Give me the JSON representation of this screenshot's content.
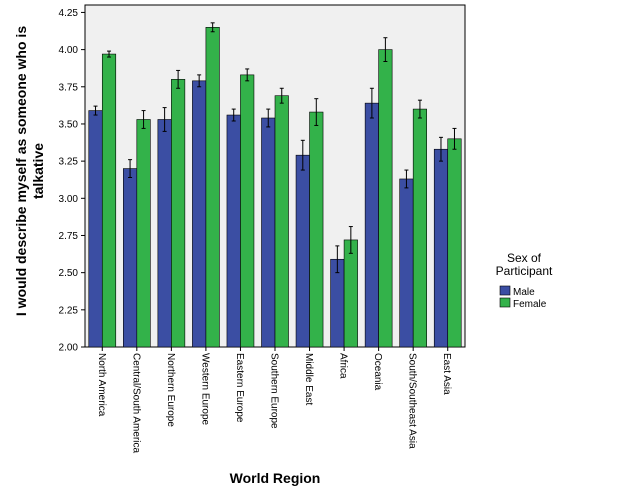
{
  "chart_data": {
    "type": "bar",
    "title": "",
    "xlabel": "World Region",
    "ylabel_lines": [
      "I would describe myself as someone who is",
      "talkative"
    ],
    "ylim": [
      2.0,
      4.3
    ],
    "yticks": [
      "2.00",
      "2.25",
      "2.50",
      "2.75",
      "3.00",
      "3.25",
      "3.50",
      "3.75",
      "4.00",
      "4.25"
    ],
    "categories": [
      "North America",
      "Central/South America",
      "Northern Europe",
      "Western Europe",
      "Eastern Europe",
      "Southern Europe",
      "Middle East",
      "Africa",
      "Oceania",
      "South/Southeast Asia",
      "East Asia"
    ],
    "legend": {
      "title_lines": [
        "Sex of",
        "Participant"
      ],
      "placement": "right"
    },
    "grid": false,
    "error_bars": true,
    "series": [
      {
        "name": "Male",
        "color": "#3b4ea3",
        "values": [
          3.59,
          3.2,
          3.53,
          3.79,
          3.56,
          3.54,
          3.29,
          2.59,
          3.64,
          3.13,
          3.33
        ],
        "err": [
          0.03,
          0.06,
          0.08,
          0.04,
          0.04,
          0.06,
          0.1,
          0.09,
          0.1,
          0.06,
          0.08
        ]
      },
      {
        "name": "Female",
        "color": "#33b24a",
        "values": [
          3.97,
          3.53,
          3.8,
          4.15,
          3.83,
          3.69,
          3.58,
          2.72,
          4.0,
          3.6,
          3.4
        ],
        "err": [
          0.02,
          0.06,
          0.06,
          0.03,
          0.04,
          0.05,
          0.09,
          0.09,
          0.08,
          0.06,
          0.07
        ]
      }
    ]
  }
}
